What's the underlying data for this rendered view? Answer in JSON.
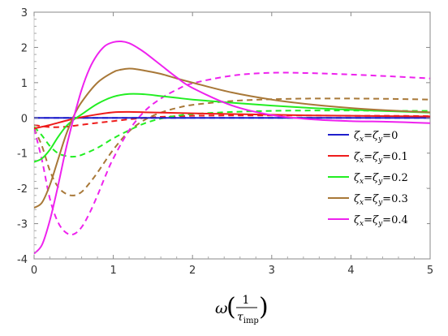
{
  "chart_data": {
    "type": "line",
    "title": "",
    "xlabel": {
      "symbol": "ω",
      "numerator": "1",
      "denominator": "τ",
      "denominator_sub": "imp"
    },
    "ylabel": "",
    "xlim": [
      0,
      5
    ],
    "ylim": [
      -4,
      3
    ],
    "x_ticks": [
      0,
      1,
      2,
      3,
      4,
      5
    ],
    "y_ticks": [
      -4,
      -3,
      -2,
      -1,
      0,
      1,
      2,
      3
    ],
    "grid": false,
    "legend_position": "right",
    "series": [
      {
        "name": "ζx=ζy=0",
        "legend": {
          "a": "ζ",
          "a_sub": "x",
          "b": "ζ",
          "b_sub": "y",
          "value": "=0"
        },
        "color": "#1f1fcc",
        "solid": {
          "x": [
            0,
            5
          ],
          "y": [
            0,
            0
          ]
        },
        "dashed": {
          "x": [
            0,
            5
          ],
          "y": [
            0,
            0
          ]
        }
      },
      {
        "name": "ζx=ζy=0.1",
        "legend": {
          "a": "ζ",
          "a_sub": "x",
          "b": "ζ",
          "b_sub": "y",
          "value": "=0.1"
        },
        "color": "#ee1c1c",
        "solid": {
          "x": [
            0,
            0.2,
            0.4,
            0.55,
            0.8,
            1.0,
            1.2,
            1.4,
            1.6,
            2.0,
            2.5,
            3.0,
            3.5,
            4.0,
            4.5,
            5.0
          ],
          "y": [
            -0.3,
            -0.2,
            -0.08,
            0.0,
            0.1,
            0.16,
            0.17,
            0.16,
            0.15,
            0.13,
            0.11,
            0.09,
            0.07,
            0.06,
            0.05,
            0.04
          ]
        },
        "dashed": {
          "x": [
            0,
            0.2,
            0.4,
            0.55,
            0.8,
            1.0,
            1.2,
            1.4,
            1.6,
            2.0,
            2.5,
            3.0,
            3.5,
            4.0,
            4.5,
            5.0
          ],
          "y": [
            -0.2,
            -0.26,
            -0.25,
            -0.21,
            -0.14,
            -0.09,
            -0.04,
            0.0,
            0.03,
            0.06,
            0.07,
            0.07,
            0.07,
            0.06,
            0.06,
            0.05
          ]
        }
      },
      {
        "name": "ζx=ζy=0.2",
        "legend": {
          "a": "ζ",
          "a_sub": "x",
          "b": "ζ",
          "b_sub": "y",
          "value": "=0.2"
        },
        "color": "#22ee22",
        "solid": {
          "x": [
            0,
            0.1,
            0.2,
            0.3,
            0.4,
            0.5,
            0.6,
            0.8,
            1.0,
            1.2,
            1.4,
            1.6,
            1.8,
            2.0,
            2.5,
            3.0,
            3.5,
            4.0,
            4.5,
            5.0
          ],
          "y": [
            -1.25,
            -1.15,
            -0.9,
            -0.55,
            -0.25,
            -0.05,
            0.1,
            0.4,
            0.6,
            0.68,
            0.67,
            0.62,
            0.57,
            0.52,
            0.43,
            0.35,
            0.28,
            0.23,
            0.19,
            0.15
          ]
        },
        "dashed": {
          "x": [
            0,
            0.1,
            0.2,
            0.3,
            0.4,
            0.5,
            0.6,
            0.8,
            1.0,
            1.2,
            1.4,
            1.6,
            1.8,
            2.0,
            2.5,
            3.0,
            3.5,
            4.0,
            4.5,
            5.0
          ],
          "y": [
            -0.25,
            -0.5,
            -0.8,
            -1.0,
            -1.08,
            -1.1,
            -1.05,
            -0.85,
            -0.58,
            -0.35,
            -0.15,
            -0.02,
            0.06,
            0.11,
            0.17,
            0.2,
            0.21,
            0.21,
            0.2,
            0.2
          ]
        }
      },
      {
        "name": "ζx=ζy=0.3",
        "legend": {
          "a": "ζ",
          "a_sub": "x",
          "b": "ζ",
          "b_sub": "y",
          "value": "=0.3"
        },
        "color": "#a87838",
        "solid": {
          "x": [
            0,
            0.1,
            0.2,
            0.3,
            0.4,
            0.5,
            0.6,
            0.8,
            1.0,
            1.1,
            1.2,
            1.3,
            1.4,
            1.6,
            1.8,
            2.0,
            2.5,
            3.0,
            3.5,
            4.0,
            4.5,
            5.0
          ],
          "y": [
            -2.55,
            -2.4,
            -1.9,
            -1.2,
            -0.5,
            0.05,
            0.45,
            1.0,
            1.3,
            1.37,
            1.4,
            1.38,
            1.34,
            1.25,
            1.12,
            1.0,
            0.72,
            0.52,
            0.38,
            0.28,
            0.21,
            0.16
          ]
        },
        "dashed": {
          "x": [
            0,
            0.1,
            0.2,
            0.3,
            0.4,
            0.5,
            0.6,
            0.7,
            0.8,
            1.0,
            1.2,
            1.4,
            1.6,
            1.8,
            2.0,
            2.5,
            3.0,
            3.5,
            4.0,
            4.5,
            5.0
          ],
          "y": [
            -0.3,
            -0.8,
            -1.5,
            -1.95,
            -2.15,
            -2.2,
            -2.1,
            -1.85,
            -1.55,
            -0.9,
            -0.38,
            -0.05,
            0.15,
            0.28,
            0.37,
            0.48,
            0.53,
            0.55,
            0.55,
            0.54,
            0.52
          ]
        }
      },
      {
        "name": "ζx=ζy=0.4",
        "legend": {
          "a": "ζ",
          "a_sub": "x",
          "b": "ζ",
          "b_sub": "y",
          "value": "=0.4"
        },
        "color": "#ee22ee",
        "solid": {
          "x": [
            0,
            0.1,
            0.2,
            0.3,
            0.4,
            0.5,
            0.6,
            0.7,
            0.8,
            0.9,
            1.0,
            1.1,
            1.2,
            1.3,
            1.4,
            1.6,
            1.8,
            2.0,
            2.5,
            3.0,
            3.5,
            4.0,
            4.5,
            5.0
          ],
          "y": [
            -3.85,
            -3.6,
            -2.9,
            -1.95,
            -0.9,
            0.0,
            0.8,
            1.4,
            1.8,
            2.05,
            2.15,
            2.17,
            2.12,
            2.0,
            1.85,
            1.5,
            1.15,
            0.85,
            0.35,
            0.08,
            -0.04,
            -0.09,
            -0.11,
            -0.15
          ]
        },
        "dashed": {
          "x": [
            0,
            0.1,
            0.2,
            0.3,
            0.4,
            0.5,
            0.6,
            0.7,
            0.8,
            0.9,
            1.0,
            1.2,
            1.4,
            1.6,
            1.8,
            2.0,
            2.5,
            3.0,
            3.5,
            4.0,
            4.5,
            5.0
          ],
          "y": [
            -0.3,
            -1.2,
            -2.3,
            -2.95,
            -3.25,
            -3.3,
            -3.1,
            -2.7,
            -2.2,
            -1.65,
            -1.15,
            -0.35,
            0.2,
            0.55,
            0.8,
            0.98,
            1.2,
            1.28,
            1.27,
            1.23,
            1.18,
            1.12
          ]
        }
      }
    ]
  }
}
